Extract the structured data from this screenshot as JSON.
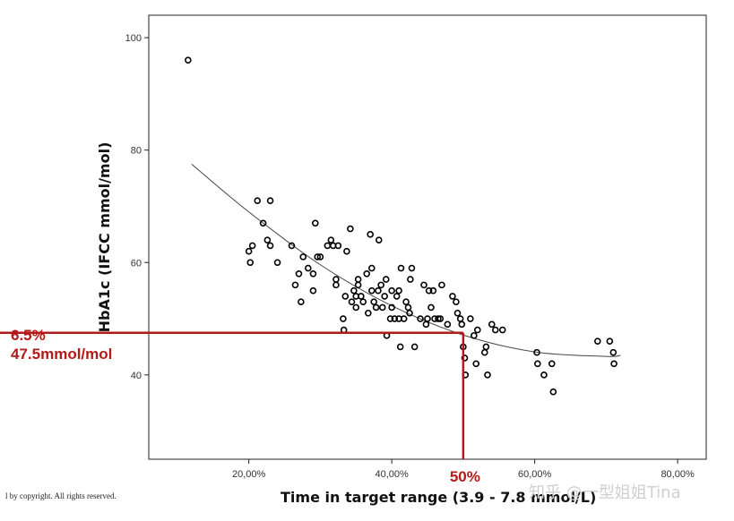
{
  "chart_data": {
    "type": "scatter",
    "title": "",
    "xlabel": "Time in target range (3.9 - 7.8 mmol/L)",
    "ylabel": "HbA1c (IFCC mmol/mol)",
    "xlim": [
      0.06,
      0.84
    ],
    "ylim": [
      25,
      104
    ],
    "x_ticks": [
      0.2,
      0.4,
      0.6,
      0.8
    ],
    "x_tick_labels": [
      "20,00%",
      "40,00%",
      "60,00%",
      "80,00%"
    ],
    "y_ticks": [
      40,
      60,
      80,
      100
    ],
    "y_tick_labels": [
      "40",
      "60",
      "80",
      "100"
    ],
    "points": [
      [
        0.115,
        96
      ],
      [
        0.2,
        62
      ],
      [
        0.202,
        60
      ],
      [
        0.205,
        63
      ],
      [
        0.212,
        71
      ],
      [
        0.22,
        67
      ],
      [
        0.226,
        64
      ],
      [
        0.23,
        63
      ],
      [
        0.23,
        71
      ],
      [
        0.24,
        60
      ],
      [
        0.26,
        63
      ],
      [
        0.265,
        56
      ],
      [
        0.27,
        58
      ],
      [
        0.273,
        53
      ],
      [
        0.276,
        61
      ],
      [
        0.283,
        59
      ],
      [
        0.29,
        58
      ],
      [
        0.29,
        55
      ],
      [
        0.293,
        67
      ],
      [
        0.296,
        61
      ],
      [
        0.3,
        61
      ],
      [
        0.31,
        63
      ],
      [
        0.315,
        64
      ],
      [
        0.318,
        63
      ],
      [
        0.322,
        57
      ],
      [
        0.325,
        63
      ],
      [
        0.322,
        56
      ],
      [
        0.332,
        50
      ],
      [
        0.333,
        48
      ],
      [
        0.337,
        62
      ],
      [
        0.335,
        54
      ],
      [
        0.342,
        66
      ],
      [
        0.344,
        53
      ],
      [
        0.347,
        55
      ],
      [
        0.35,
        54
      ],
      [
        0.35,
        52
      ],
      [
        0.353,
        57
      ],
      [
        0.353,
        56
      ],
      [
        0.357,
        54
      ],
      [
        0.36,
        53
      ],
      [
        0.365,
        58
      ],
      [
        0.367,
        51
      ],
      [
        0.37,
        65
      ],
      [
        0.372,
        55
      ],
      [
        0.372,
        59
      ],
      [
        0.375,
        53
      ],
      [
        0.378,
        52
      ],
      [
        0.381,
        55
      ],
      [
        0.382,
        64
      ],
      [
        0.385,
        56
      ],
      [
        0.387,
        52
      ],
      [
        0.39,
        54
      ],
      [
        0.392,
        57
      ],
      [
        0.393,
        47
      ],
      [
        0.398,
        50
      ],
      [
        0.4,
        55
      ],
      [
        0.4,
        52
      ],
      [
        0.404,
        50
      ],
      [
        0.407,
        54
      ],
      [
        0.41,
        50
      ],
      [
        0.41,
        55
      ],
      [
        0.412,
        45
      ],
      [
        0.413,
        59
      ],
      [
        0.417,
        50
      ],
      [
        0.42,
        53
      ],
      [
        0.423,
        52
      ],
      [
        0.425,
        51
      ],
      [
        0.426,
        57
      ],
      [
        0.428,
        59
      ],
      [
        0.432,
        45
      ],
      [
        0.44,
        50
      ],
      [
        0.445,
        56
      ],
      [
        0.448,
        49
      ],
      [
        0.45,
        50
      ],
      [
        0.452,
        55
      ],
      [
        0.455,
        52
      ],
      [
        0.458,
        55
      ],
      [
        0.46,
        50
      ],
      [
        0.465,
        50
      ],
      [
        0.468,
        50
      ],
      [
        0.47,
        56
      ],
      [
        0.478,
        49
      ],
      [
        0.485,
        54
      ],
      [
        0.49,
        53
      ],
      [
        0.492,
        51
      ],
      [
        0.496,
        50
      ],
      [
        0.498,
        49
      ],
      [
        0.5,
        45
      ],
      [
        0.502,
        43
      ],
      [
        0.503,
        40
      ],
      [
        0.51,
        50
      ],
      [
        0.515,
        47
      ],
      [
        0.518,
        42
      ],
      [
        0.52,
        48
      ],
      [
        0.53,
        44
      ],
      [
        0.532,
        45
      ],
      [
        0.534,
        40
      ],
      [
        0.54,
        49
      ],
      [
        0.545,
        48
      ],
      [
        0.555,
        48
      ],
      [
        0.603,
        44
      ],
      [
        0.604,
        42
      ],
      [
        0.613,
        40
      ],
      [
        0.624,
        42
      ],
      [
        0.626,
        37
      ],
      [
        0.688,
        46
      ],
      [
        0.705,
        46
      ],
      [
        0.71,
        44
      ],
      [
        0.711,
        42
      ]
    ],
    "trend_curve": {
      "x": [
        0.12,
        0.2,
        0.3,
        0.4,
        0.5,
        0.6,
        0.7,
        0.72
      ],
      "y": [
        77.5,
        69,
        59.6,
        52.3,
        47.1,
        44.1,
        43.3,
        43.5
      ]
    },
    "annotation": {
      "label_line1": "6.5%",
      "label_line2": "47.5mmol/mol",
      "x_label": "50%",
      "x_value": 0.5,
      "y_value": 47.5,
      "color": "#b31a1a"
    }
  },
  "footer": {
    "copyright": "l by copyright. All rights reserved.",
    "watermark": "知乎 @一型姐姐Tina"
  }
}
